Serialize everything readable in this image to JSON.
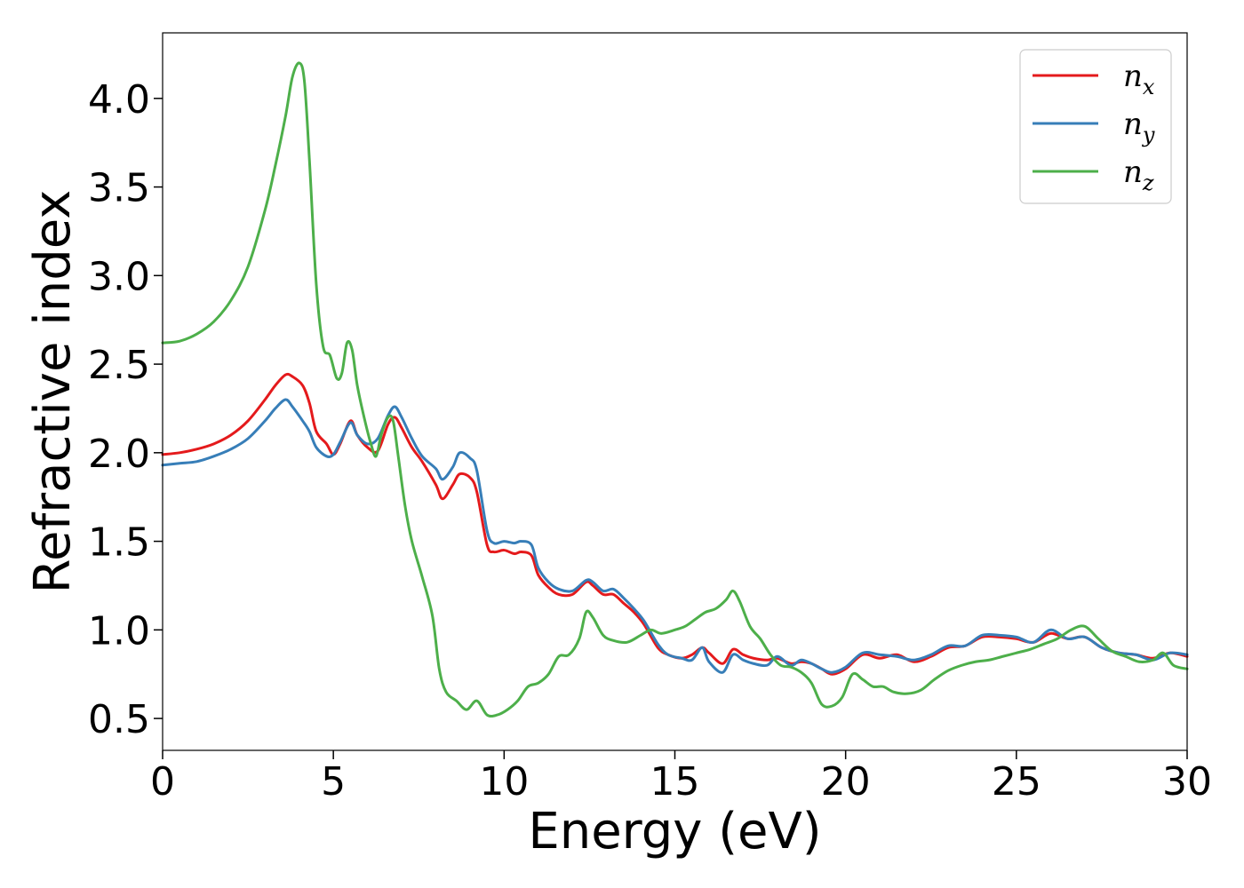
{
  "chart_data": {
    "type": "line",
    "title": "",
    "xlabel": "Energy (eV)",
    "ylabel": "Refractive index",
    "xlim": [
      0,
      30
    ],
    "ylim": [
      0.32,
      4.37
    ],
    "xticks": [
      0,
      5,
      10,
      15,
      20,
      25,
      30
    ],
    "xtick_labels": [
      "0",
      "5",
      "10",
      "15",
      "20",
      "25",
      "30"
    ],
    "yticks": [
      0.5,
      1.0,
      1.5,
      2.0,
      2.5,
      3.0,
      3.5,
      4.0
    ],
    "ytick_labels": [
      "0.5",
      "1.0",
      "1.5",
      "2.0",
      "2.5",
      "3.0",
      "3.5",
      "4.0"
    ],
    "grid": false,
    "legend_position": "top-right",
    "series": [
      {
        "name": "n_x",
        "label_main": "n",
        "label_sub": "x",
        "color": "#e41a1c",
        "x": [
          0,
          0.5,
          1,
          1.5,
          2,
          2.5,
          3,
          3.3,
          3.6,
          3.8,
          4.1,
          4.3,
          4.5,
          4.8,
          5.0,
          5.2,
          5.5,
          5.7,
          6.0,
          6.3,
          6.6,
          6.8,
          7.0,
          7.3,
          7.6,
          8.0,
          8.2,
          8.5,
          8.7,
          9.0,
          9.2,
          9.5,
          9.7,
          10.0,
          10.3,
          10.5,
          10.8,
          11.0,
          11.3,
          11.6,
          12.0,
          12.4,
          12.6,
          12.9,
          13.2,
          13.5,
          13.8,
          14.1,
          14.5,
          14.8,
          15.2,
          15.5,
          15.8,
          16.0,
          16.4,
          16.7,
          17.0,
          17.3,
          17.7,
          18.0,
          18.4,
          18.7,
          19.0,
          19.3,
          19.6,
          20.0,
          20.5,
          21.0,
          21.5,
          22.0,
          22.5,
          23.0,
          23.5,
          24.0,
          24.5,
          25.0,
          25.5,
          26.0,
          26.5,
          27.0,
          27.5,
          28.0,
          28.5,
          29.0,
          29.5,
          30.0
        ],
        "y": [
          1.99,
          2.0,
          2.02,
          2.05,
          2.1,
          2.18,
          2.3,
          2.38,
          2.44,
          2.43,
          2.38,
          2.28,
          2.12,
          2.05,
          1.99,
          2.05,
          2.18,
          2.1,
          2.03,
          2.01,
          2.16,
          2.2,
          2.14,
          2.03,
          1.95,
          1.82,
          1.74,
          1.82,
          1.88,
          1.86,
          1.78,
          1.48,
          1.44,
          1.45,
          1.43,
          1.44,
          1.42,
          1.31,
          1.24,
          1.2,
          1.2,
          1.27,
          1.25,
          1.2,
          1.2,
          1.15,
          1.1,
          1.03,
          0.9,
          0.86,
          0.84,
          0.86,
          0.9,
          0.87,
          0.81,
          0.89,
          0.86,
          0.84,
          0.83,
          0.84,
          0.81,
          0.82,
          0.81,
          0.78,
          0.75,
          0.78,
          0.86,
          0.84,
          0.86,
          0.82,
          0.85,
          0.9,
          0.91,
          0.96,
          0.96,
          0.95,
          0.93,
          0.98,
          0.95,
          0.96,
          0.9,
          0.87,
          0.86,
          0.84,
          0.87,
          0.85
        ]
      },
      {
        "name": "n_y",
        "label_main": "n",
        "label_sub": "y",
        "color": "#377eb8",
        "x": [
          0,
          0.5,
          1,
          1.5,
          2,
          2.5,
          3,
          3.3,
          3.6,
          3.8,
          4.1,
          4.3,
          4.5,
          4.8,
          5.0,
          5.2,
          5.5,
          5.7,
          6.0,
          6.3,
          6.6,
          6.8,
          7.0,
          7.3,
          7.6,
          8.0,
          8.2,
          8.5,
          8.7,
          9.0,
          9.2,
          9.5,
          9.7,
          10.0,
          10.3,
          10.5,
          10.8,
          11.0,
          11.3,
          11.6,
          12.0,
          12.4,
          12.6,
          12.9,
          13.2,
          13.5,
          13.8,
          14.1,
          14.5,
          14.8,
          15.2,
          15.5,
          15.8,
          16.0,
          16.4,
          16.7,
          17.0,
          17.3,
          17.7,
          18.0,
          18.4,
          18.7,
          19.0,
          19.3,
          19.6,
          20.0,
          20.5,
          21.0,
          21.5,
          22.0,
          22.5,
          23.0,
          23.5,
          24.0,
          24.5,
          25.0,
          25.5,
          26.0,
          26.5,
          27.0,
          27.5,
          28.0,
          28.5,
          29.0,
          29.5,
          30.0
        ],
        "y": [
          1.93,
          1.94,
          1.95,
          1.98,
          2.02,
          2.08,
          2.18,
          2.25,
          2.3,
          2.26,
          2.18,
          2.12,
          2.03,
          1.98,
          1.99,
          2.06,
          2.17,
          2.1,
          2.05,
          2.08,
          2.21,
          2.26,
          2.2,
          2.08,
          1.98,
          1.91,
          1.85,
          1.92,
          2.0,
          1.97,
          1.9,
          1.56,
          1.49,
          1.5,
          1.49,
          1.5,
          1.48,
          1.35,
          1.27,
          1.23,
          1.22,
          1.28,
          1.27,
          1.22,
          1.23,
          1.18,
          1.12,
          1.05,
          0.92,
          0.86,
          0.84,
          0.83,
          0.9,
          0.82,
          0.76,
          0.86,
          0.83,
          0.81,
          0.8,
          0.85,
          0.8,
          0.83,
          0.81,
          0.78,
          0.76,
          0.79,
          0.87,
          0.86,
          0.85,
          0.83,
          0.86,
          0.91,
          0.91,
          0.97,
          0.97,
          0.96,
          0.93,
          1.0,
          0.95,
          0.96,
          0.9,
          0.87,
          0.86,
          0.83,
          0.87,
          0.86
        ]
      },
      {
        "name": "n_z",
        "label_main": "n",
        "label_sub": "z",
        "color": "#4daf4a",
        "x": [
          0,
          0.5,
          1,
          1.5,
          2,
          2.5,
          3,
          3.3,
          3.6,
          3.8,
          4.0,
          4.15,
          4.3,
          4.5,
          4.7,
          4.9,
          5.1,
          5.25,
          5.4,
          5.55,
          5.7,
          5.9,
          6.1,
          6.25,
          6.4,
          6.6,
          6.75,
          6.9,
          7.1,
          7.3,
          7.6,
          7.9,
          8.1,
          8.3,
          8.6,
          8.9,
          9.2,
          9.5,
          9.8,
          10.1,
          10.4,
          10.7,
          11.0,
          11.3,
          11.6,
          11.9,
          12.2,
          12.4,
          12.6,
          12.9,
          13.2,
          13.6,
          14.0,
          14.3,
          14.6,
          15.0,
          15.3,
          15.6,
          15.9,
          16.2,
          16.5,
          16.7,
          16.9,
          17.2,
          17.5,
          17.8,
          18.1,
          18.4,
          18.7,
          19.0,
          19.3,
          19.6,
          19.9,
          20.2,
          20.5,
          20.8,
          21.1,
          21.4,
          21.8,
          22.2,
          22.6,
          23.0,
          23.4,
          23.8,
          24.2,
          24.6,
          25.0,
          25.4,
          25.8,
          26.2,
          26.6,
          27.0,
          27.4,
          27.8,
          28.2,
          28.6,
          29.0,
          29.3,
          29.6,
          30.0
        ],
        "y": [
          2.62,
          2.63,
          2.67,
          2.74,
          2.86,
          3.05,
          3.37,
          3.62,
          3.9,
          4.12,
          4.2,
          4.1,
          3.65,
          2.95,
          2.6,
          2.55,
          2.42,
          2.45,
          2.62,
          2.58,
          2.38,
          2.2,
          2.05,
          1.98,
          2.1,
          2.2,
          2.18,
          1.98,
          1.7,
          1.5,
          1.3,
          1.08,
          0.78,
          0.65,
          0.6,
          0.55,
          0.6,
          0.52,
          0.52,
          0.55,
          0.6,
          0.68,
          0.7,
          0.75,
          0.85,
          0.86,
          0.95,
          1.1,
          1.07,
          0.97,
          0.94,
          0.93,
          0.97,
          1.0,
          0.98,
          1.0,
          1.02,
          1.06,
          1.1,
          1.12,
          1.17,
          1.22,
          1.16,
          1.02,
          0.95,
          0.86,
          0.8,
          0.79,
          0.76,
          0.7,
          0.58,
          0.57,
          0.62,
          0.75,
          0.72,
          0.68,
          0.68,
          0.65,
          0.64,
          0.66,
          0.72,
          0.77,
          0.8,
          0.82,
          0.83,
          0.85,
          0.87,
          0.89,
          0.92,
          0.95,
          1.0,
          1.02,
          0.95,
          0.88,
          0.85,
          0.82,
          0.83,
          0.87,
          0.8,
          0.78
        ]
      }
    ]
  }
}
